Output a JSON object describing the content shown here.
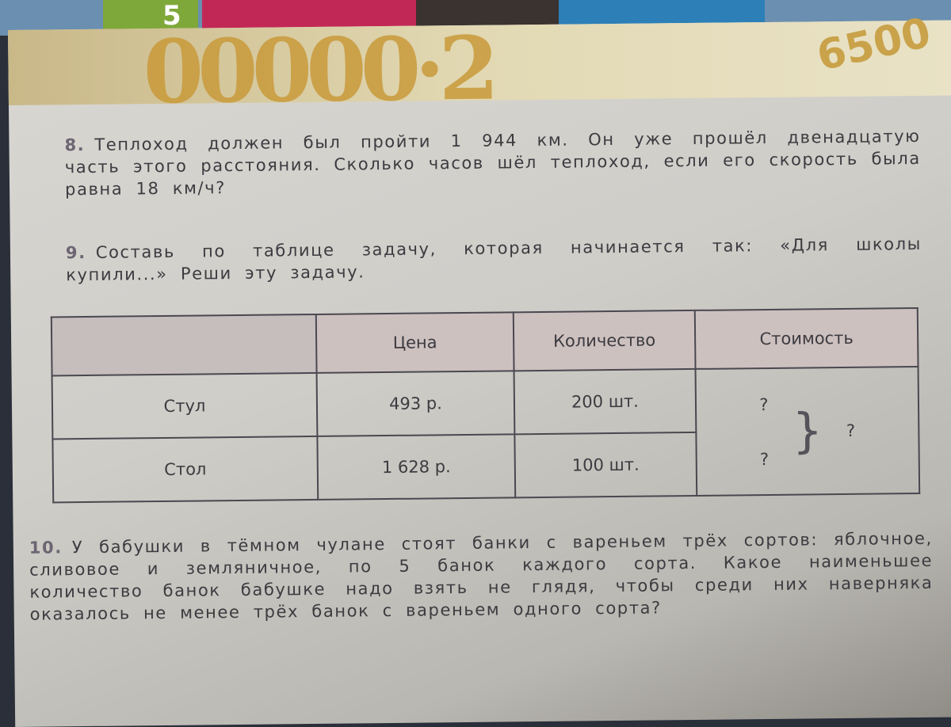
{
  "header": {
    "decor_number": "00000·2",
    "decor_number_right": "6500"
  },
  "spine_label": "5",
  "problems": [
    {
      "number": "8.",
      "text": "Теплоход должен был пройти 1 944 км. Он уже прошёл двенадцатую часть этого расстояния. Сколько часов шёл теплоход, если его скорость была равна 18 км/ч?"
    },
    {
      "number": "9.",
      "text": "Составь по таблице задачу, которая начинается так: «Для школы купили...» Реши эту задачу."
    },
    {
      "number": "10.",
      "text": "У бабушки в тёмном чулане стоят банки с вареньем трёх сортов: яблочное, сливовое и земляничное, по 5 банок каждого сорта. Какое наименьшее количество банок бабушке надо взять не глядя, чтобы среди них наверняка оказалось не менее трёх банок с вареньем одного сорта?"
    }
  ],
  "table": {
    "headers": [
      "",
      "Цена",
      "Количество",
      "Стоимость"
    ],
    "rows": [
      {
        "item": "Стул",
        "price": "493 р.",
        "quantity": "200 шт.",
        "cost": "?"
      },
      {
        "item": "Стол",
        "price": "1 628 р.",
        "quantity": "100 шт.",
        "cost": "?"
      }
    ],
    "total": "?"
  }
}
